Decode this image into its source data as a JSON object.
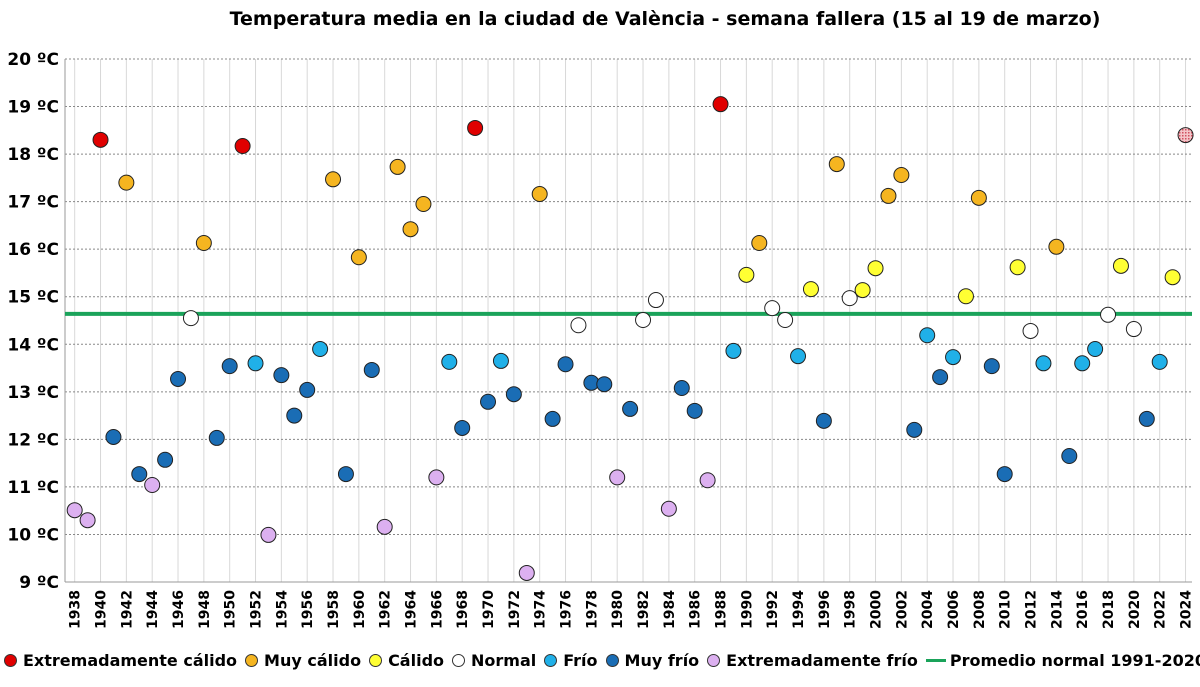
{
  "chart_data": {
    "type": "scatter",
    "title": "Temperatura media en la ciudad de València - semana fallera (15 al 19 de marzo)",
    "xlim": [
      1937.25,
      2024.5
    ],
    "ylim": [
      9,
      20
    ],
    "yticks": [
      9,
      10,
      11,
      12,
      13,
      14,
      15,
      16,
      17,
      18,
      19,
      20
    ],
    "ytick_suffix": " ºC",
    "xticks": [
      1938,
      1940,
      1942,
      1944,
      1946,
      1948,
      1950,
      1952,
      1954,
      1956,
      1958,
      1960,
      1962,
      1964,
      1966,
      1968,
      1970,
      1972,
      1974,
      1976,
      1978,
      1980,
      1982,
      1984,
      1986,
      1988,
      1990,
      1992,
      1994,
      1996,
      1998,
      2000,
      2002,
      2004,
      2006,
      2008,
      2010,
      2012,
      2014,
      2016,
      2018,
      2020,
      2022,
      2024
    ],
    "grid": true,
    "legend_position": "bottom",
    "categories": {
      "EC": {
        "name": "Extremadamente cálido",
        "color": "#e00000"
      },
      "MC": {
        "name": "Muy cálido",
        "color": "#f5b520"
      },
      "C": {
        "name": "Cálido",
        "color": "#ffff33"
      },
      "N": {
        "name": "Normal",
        "color": "#ffffff"
      },
      "F": {
        "name": "Frío",
        "color": "#20b0e8"
      },
      "MF": {
        "name": "Muy frío",
        "color": "#1a6db5"
      },
      "EF": {
        "name": "Extremadamente frío",
        "color": "#dcb0f0"
      },
      "P": {
        "name": "",
        "color": "#e8a0a8"
      }
    },
    "reference_line": {
      "name": "Promedio normal 1991-2020",
      "value": 14.64,
      "color": "#1aa35a"
    },
    "points": [
      [
        1938,
        10.51,
        "EF"
      ],
      [
        1939,
        10.3,
        "EF"
      ],
      [
        1940,
        18.3,
        "EC"
      ],
      [
        1941,
        12.05,
        "MF"
      ],
      [
        1942,
        17.4,
        "MC"
      ],
      [
        1943,
        11.27,
        "MF"
      ],
      [
        1944,
        11.04,
        "EF"
      ],
      [
        1945,
        11.57,
        "MF"
      ],
      [
        1946,
        13.27,
        "MF"
      ],
      [
        1947,
        14.55,
        "N"
      ],
      [
        1948,
        16.13,
        "MC"
      ],
      [
        1949,
        12.03,
        "MF"
      ],
      [
        1950,
        13.54,
        "MF"
      ],
      [
        1951,
        18.17,
        "EC"
      ],
      [
        1952,
        13.6,
        "F"
      ],
      [
        1953,
        9.99,
        "EF"
      ],
      [
        1954,
        13.35,
        "MF"
      ],
      [
        1955,
        12.5,
        "MF"
      ],
      [
        1956,
        13.04,
        "MF"
      ],
      [
        1957,
        13.9,
        "F"
      ],
      [
        1958,
        17.47,
        "MC"
      ],
      [
        1959,
        11.27,
        "MF"
      ],
      [
        1960,
        15.83,
        "MC"
      ],
      [
        1961,
        13.46,
        "MF"
      ],
      [
        1962,
        10.16,
        "EF"
      ],
      [
        1963,
        17.73,
        "MC"
      ],
      [
        1964,
        16.42,
        "MC"
      ],
      [
        1965,
        16.95,
        "MC"
      ],
      [
        1966,
        11.2,
        "EF"
      ],
      [
        1967,
        13.63,
        "F"
      ],
      [
        1968,
        12.24,
        "MF"
      ],
      [
        1969,
        18.55,
        "EC"
      ],
      [
        1970,
        12.79,
        "MF"
      ],
      [
        1971,
        13.65,
        "F"
      ],
      [
        1972,
        12.95,
        "MF"
      ],
      [
        1973,
        9.19,
        "EF"
      ],
      [
        1974,
        17.16,
        "MC"
      ],
      [
        1975,
        12.43,
        "MF"
      ],
      [
        1976,
        13.58,
        "MF"
      ],
      [
        1977,
        14.4,
        "N"
      ],
      [
        1978,
        13.19,
        "MF"
      ],
      [
        1979,
        13.16,
        "MF"
      ],
      [
        1980,
        11.2,
        "EF"
      ],
      [
        1981,
        12.64,
        "MF"
      ],
      [
        1982,
        14.51,
        "N"
      ],
      [
        1983,
        14.93,
        "N"
      ],
      [
        1984,
        10.54,
        "EF"
      ],
      [
        1985,
        13.08,
        "MF"
      ],
      [
        1986,
        12.6,
        "MF"
      ],
      [
        1987,
        11.14,
        "EF"
      ],
      [
        1988,
        19.05,
        "EC"
      ],
      [
        1989,
        13.86,
        "F"
      ],
      [
        1990,
        15.46,
        "C"
      ],
      [
        1991,
        16.13,
        "MC"
      ],
      [
        1992,
        14.76,
        "N"
      ],
      [
        1993,
        14.51,
        "N"
      ],
      [
        1994,
        13.75,
        "F"
      ],
      [
        1995,
        15.16,
        "C"
      ],
      [
        1996,
        12.39,
        "MF"
      ],
      [
        1997,
        17.79,
        "MC"
      ],
      [
        1998,
        14.97,
        "N"
      ],
      [
        1999,
        15.14,
        "C"
      ],
      [
        2000,
        15.6,
        "C"
      ],
      [
        2001,
        17.12,
        "MC"
      ],
      [
        2002,
        17.56,
        "MC"
      ],
      [
        2003,
        12.2,
        "MF"
      ],
      [
        2004,
        14.19,
        "F"
      ],
      [
        2005,
        13.31,
        "MF"
      ],
      [
        2006,
        13.73,
        "F"
      ],
      [
        2007,
        15.01,
        "C"
      ],
      [
        2008,
        17.08,
        "MC"
      ],
      [
        2009,
        13.54,
        "MF"
      ],
      [
        2010,
        11.27,
        "MF"
      ],
      [
        2011,
        15.62,
        "C"
      ],
      [
        2012,
        14.28,
        "N"
      ],
      [
        2013,
        13.6,
        "F"
      ],
      [
        2014,
        16.05,
        "MC"
      ],
      [
        2015,
        11.65,
        "MF"
      ],
      [
        2016,
        13.6,
        "F"
      ],
      [
        2017,
        13.9,
        "F"
      ],
      [
        2018,
        14.62,
        "N"
      ],
      [
        2019,
        15.65,
        "C"
      ],
      [
        2020,
        14.32,
        "N"
      ],
      [
        2021,
        12.43,
        "MF"
      ],
      [
        2022,
        13.63,
        "F"
      ],
      [
        2023,
        15.41,
        "C"
      ],
      [
        2024,
        18.4,
        "P"
      ]
    ],
    "legend": [
      "EC",
      "MC",
      "C",
      "N",
      "F",
      "MF",
      "EF"
    ]
  }
}
